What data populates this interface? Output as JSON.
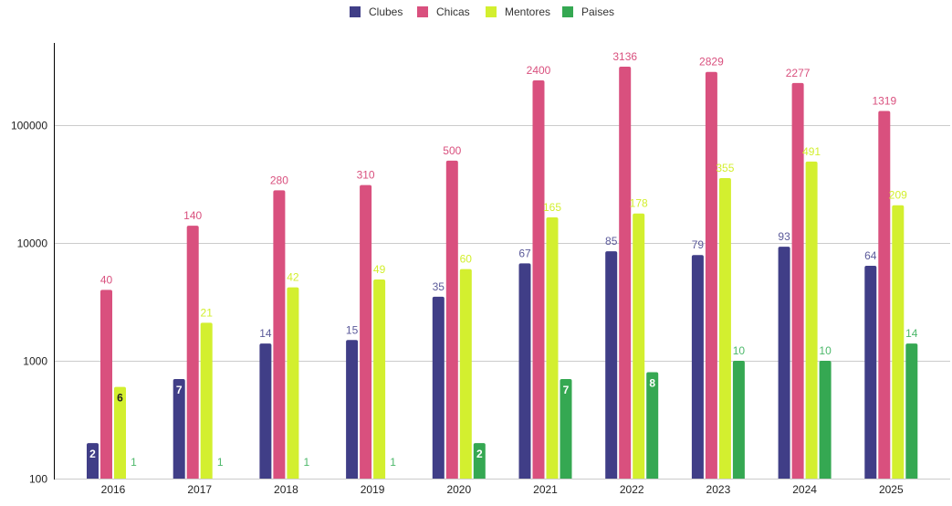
{
  "chart_data": {
    "type": "bar",
    "title": "",
    "xlabel": "",
    "ylabel": "",
    "y_scale": "log",
    "ylim": [
      100,
      100000
    ],
    "y_ticks": [
      "100",
      "1000",
      "10000",
      "100000"
    ],
    "y_tick_values": [
      100,
      1000,
      10000,
      100000
    ],
    "plotted_value_multiplier": 100,
    "grid": true,
    "legend_position": "top-center",
    "categories": [
      "2016",
      "2017",
      "2018",
      "2019",
      "2020",
      "2021",
      "2022",
      "2023",
      "2024",
      "2025"
    ],
    "series": [
      {
        "name": "Clubes",
        "color": "#403e87",
        "values": [
          2,
          7,
          14,
          15,
          35,
          67,
          85,
          79,
          93,
          64
        ]
      },
      {
        "name": "Chicas",
        "color": "#d9507e",
        "values": [
          40,
          140,
          280,
          310,
          500,
          2400,
          3136,
          2829,
          2277,
          1319
        ]
      },
      {
        "name": "Mentores",
        "color": "#d3ef2f",
        "values": [
          6,
          21,
          42,
          49,
          60,
          165,
          178,
          355,
          491,
          209
        ]
      },
      {
        "name": "Paises",
        "color": "#35a852",
        "values": [
          1,
          1,
          1,
          1,
          2,
          7,
          8,
          10,
          10,
          14
        ]
      }
    ]
  }
}
